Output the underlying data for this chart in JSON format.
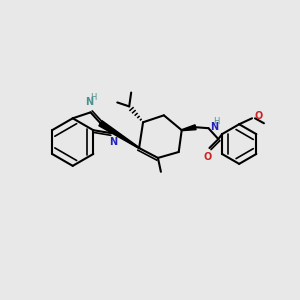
{
  "bg_color": "#e8e8e8",
  "bond_color": "#000000",
  "N_color": "#2222bb",
  "O_color": "#cc2222",
  "NH_color": "#4a9090",
  "figsize": [
    3.0,
    3.0
  ],
  "dpi": 100,
  "xlim": [
    0,
    300
  ],
  "ylim": [
    0,
    300
  ]
}
